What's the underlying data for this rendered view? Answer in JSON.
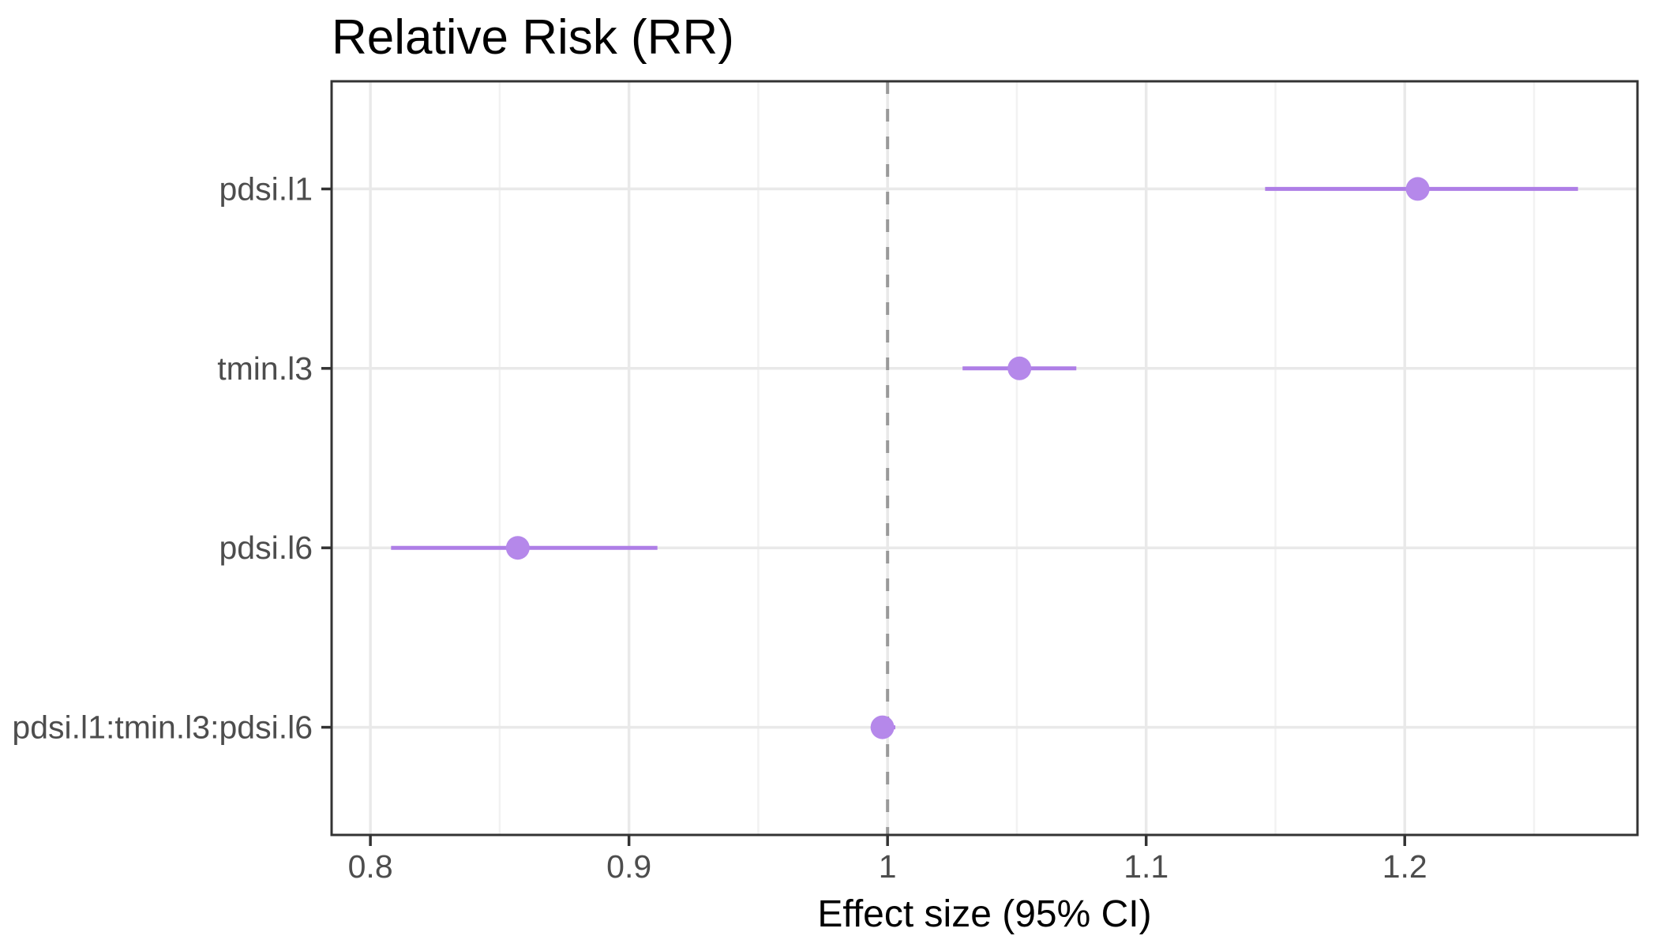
{
  "chart_data": {
    "type": "scatter",
    "subtype": "forest_plot_pointrange",
    "title": "Relative Risk (RR)",
    "xlabel": "Effect size (95% CI)",
    "ylabel": "",
    "legend": "none",
    "grid": "major and minor vertical gridlines, major horizontal gridlines",
    "categories": [
      "pdsi.l1",
      "tmin.l3",
      "pdsi.l6",
      "pdsi.l1:tmin.l3:pdsi.l6"
    ],
    "series": [
      {
        "name": "Relative Risk estimate with 95% CI",
        "points": [
          {
            "term": "pdsi.l1",
            "estimate": 1.205,
            "ci_low": 1.146,
            "ci_high": 1.267
          },
          {
            "term": "tmin.l3",
            "estimate": 1.051,
            "ci_low": 1.029,
            "ci_high": 1.073
          },
          {
            "term": "pdsi.l6",
            "estimate": 0.857,
            "ci_low": 0.808,
            "ci_high": 0.911
          },
          {
            "term": "pdsi.l1:tmin.l3:pdsi.l6",
            "estimate": 0.998,
            "ci_low": 0.994,
            "ci_high": 1.003
          }
        ]
      }
    ],
    "reference_line_x": 1,
    "x_axis": {
      "range": [
        0.785,
        1.29
      ],
      "ticks": [
        0.8,
        0.9,
        1,
        1.1,
        1.2
      ],
      "tick_labels": [
        "0.8",
        "0.9",
        "1",
        "1.1",
        "1.2"
      ],
      "minor_ticks": [
        0.85,
        0.95,
        1.05,
        1.15,
        1.25
      ]
    },
    "colors": {
      "point": "#b588ea",
      "ci_line": "#ae7ee6",
      "reference_line": "#999999",
      "grid_major": "#e9e9e9",
      "grid_minor": "#f2f2f2",
      "panel_border": "#333333",
      "axis_tick": "#333333",
      "axis_text": "#4d4d4d",
      "title_text": "#000000",
      "panel_background": "#ffffff"
    }
  }
}
